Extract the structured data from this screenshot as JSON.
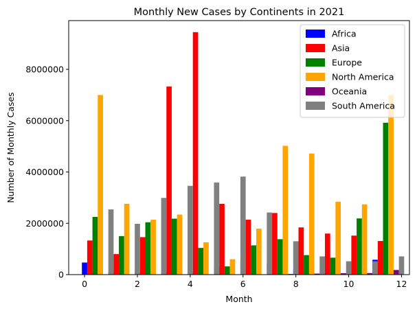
{
  "chart_data": {
    "type": "bar",
    "title": "Monthly New Cases by Continents in 2021",
    "xlabel": "Month",
    "ylabel": "Number of Monthly Cases",
    "xlim": [
      -0.6,
      12.3
    ],
    "ylim": [
      0,
      9900000
    ],
    "x_ticks": [
      0,
      2,
      4,
      6,
      8,
      10,
      12
    ],
    "y_ticks": [
      0,
      2000000,
      4000000,
      6000000,
      8000000
    ],
    "x_tick_labels": [
      "0",
      "2",
      "4",
      "6",
      "8",
      "10",
      "12"
    ],
    "y_tick_labels": [
      "0",
      "2000000",
      "4000000",
      "6000000",
      "8000000"
    ],
    "grid": false,
    "legend_position": "top-right",
    "categories": [
      0,
      1,
      2,
      3,
      4,
      5,
      6,
      7,
      8,
      9,
      10,
      11
    ],
    "series": [
      {
        "name": "Africa",
        "color": "#0000ff",
        "values": [
          470000,
          100000,
          100000,
          100000,
          120000,
          330000,
          520000,
          420000,
          180000,
          60000,
          60000,
          580000
        ]
      },
      {
        "name": "Asia",
        "color": "#ff0000",
        "values": [
          1330000,
          800000,
          1460000,
          7330000,
          9450000,
          2760000,
          2140000,
          2400000,
          1840000,
          1600000,
          1520000,
          1310000
        ]
      },
      {
        "name": "Europe",
        "color": "#008000",
        "values": [
          2250000,
          1500000,
          2040000,
          2180000,
          1040000,
          320000,
          1140000,
          1380000,
          760000,
          660000,
          2190000,
          5920000
        ]
      },
      {
        "name": "North America",
        "color": "#ffa500",
        "values": [
          7000000,
          2760000,
          2140000,
          2340000,
          1260000,
          600000,
          1790000,
          5020000,
          4720000,
          2840000,
          2740000,
          7000000
        ]
      },
      {
        "name": "Oceania",
        "color": "#800080",
        "values": [
          5000,
          5000,
          5000,
          8000,
          8000,
          5000,
          8000,
          25000,
          40000,
          55000,
          60000,
          180000
        ]
      },
      {
        "name": "South America",
        "color": "#808080",
        "values": [
          2540000,
          1980000,
          2990000,
          3460000,
          3590000,
          3820000,
          2420000,
          1300000,
          710000,
          520000,
          520000,
          710000
        ]
      }
    ]
  }
}
